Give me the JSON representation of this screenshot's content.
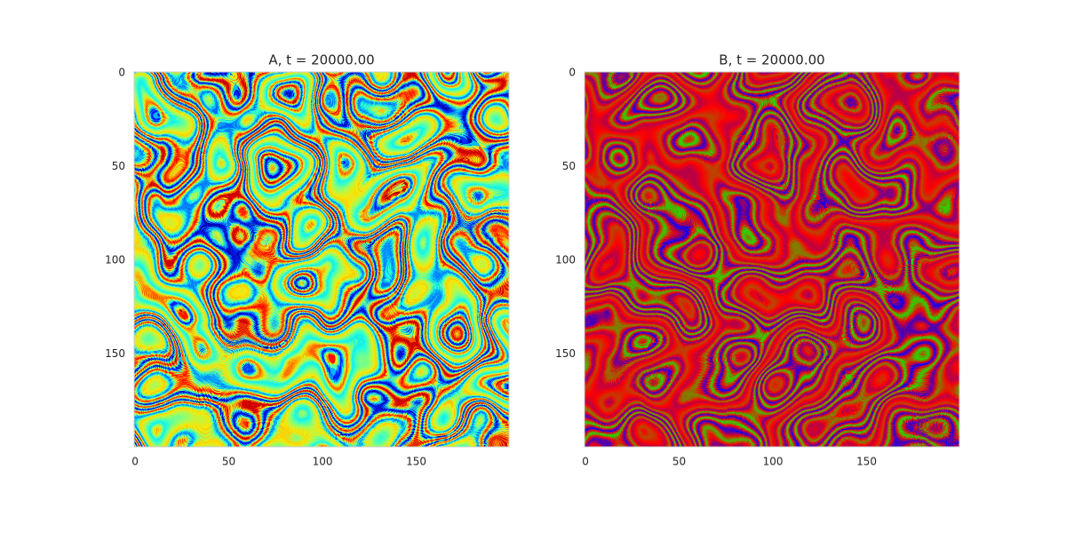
{
  "chart_data": [
    {
      "type": "image",
      "title": "A, t = 20000.00",
      "colormap": "jet",
      "xlim": [
        -0.5,
        199.5
      ],
      "ylim": [
        199.5,
        -0.5
      ],
      "xticks": [
        0,
        50,
        100,
        150
      ],
      "yticks": [
        0,
        50,
        100,
        150
      ],
      "grid": false
    },
    {
      "type": "image",
      "title": "B, t = 20000.00",
      "colormap": "brg",
      "xlim": [
        -0.5,
        199.5
      ],
      "ylim": [
        199.5,
        -0.5
      ],
      "xticks": [
        0,
        50,
        100,
        150
      ],
      "yticks": [
        0,
        50,
        100,
        150
      ],
      "grid": false
    }
  ]
}
